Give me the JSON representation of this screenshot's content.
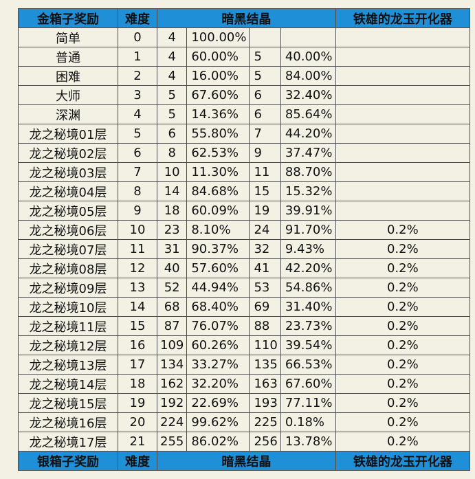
{
  "header": {
    "box": "金箱子奖励",
    "difficulty": "难度",
    "crystal": "暗黑结晶",
    "dragon": "铁雄的龙玉开化器"
  },
  "rows": [
    {
      "name": "简单",
      "diff": "0",
      "n1": "4",
      "p1": "100.00%",
      "n2": "",
      "p2": "",
      "dragon": ""
    },
    {
      "name": "普通",
      "diff": "1",
      "n1": "4",
      "p1": "60.00%",
      "n2": "5",
      "p2": "40.00%",
      "dragon": ""
    },
    {
      "name": "困难",
      "diff": "2",
      "n1": "4",
      "p1": "16.00%",
      "n2": "5",
      "p2": "84.00%",
      "dragon": ""
    },
    {
      "name": "大师",
      "diff": "3",
      "n1": "5",
      "p1": "67.60%",
      "n2": "6",
      "p2": "32.40%",
      "dragon": ""
    },
    {
      "name": "深渊",
      "diff": "4",
      "n1": "5",
      "p1": "14.36%",
      "n2": "6",
      "p2": "85.64%",
      "dragon": ""
    },
    {
      "name": "龙之秘境01层",
      "diff": "5",
      "n1": "6",
      "p1": "55.80%",
      "n2": "7",
      "p2": "44.20%",
      "dragon": ""
    },
    {
      "name": "龙之秘境02层",
      "diff": "6",
      "n1": "8",
      "p1": "62.53%",
      "n2": "9",
      "p2": "37.47%",
      "dragon": ""
    },
    {
      "name": "龙之秘境03层",
      "diff": "7",
      "n1": "10",
      "p1": "11.30%",
      "n2": "11",
      "p2": "88.70%",
      "dragon": ""
    },
    {
      "name": "龙之秘境04层",
      "diff": "8",
      "n1": "14",
      "p1": "84.68%",
      "n2": "15",
      "p2": "15.32%",
      "dragon": ""
    },
    {
      "name": "龙之秘境05层",
      "diff": "9",
      "n1": "18",
      "p1": "60.09%",
      "n2": "19",
      "p2": "39.91%",
      "dragon": ""
    },
    {
      "name": "龙之秘境06层",
      "diff": "10",
      "n1": "23",
      "p1": "8.10%",
      "n2": "24",
      "p2": "91.70%",
      "dragon": "0.2%"
    },
    {
      "name": "龙之秘境07层",
      "diff": "11",
      "n1": "31",
      "p1": "90.37%",
      "n2": "32",
      "p2": "9.43%",
      "dragon": "0.2%"
    },
    {
      "name": "龙之秘境08层",
      "diff": "12",
      "n1": "40",
      "p1": "57.60%",
      "n2": "41",
      "p2": "42.20%",
      "dragon": "0.2%"
    },
    {
      "name": "龙之秘境09层",
      "diff": "13",
      "n1": "52",
      "p1": "44.94%",
      "n2": "53",
      "p2": "54.86%",
      "dragon": "0.2%"
    },
    {
      "name": "龙之秘境10层",
      "diff": "14",
      "n1": "68",
      "p1": "68.40%",
      "n2": "69",
      "p2": "31.40%",
      "dragon": "0.2%"
    },
    {
      "name": "龙之秘境11层",
      "diff": "15",
      "n1": "87",
      "p1": "76.07%",
      "n2": "88",
      "p2": "23.73%",
      "dragon": "0.2%"
    },
    {
      "name": "龙之秘境12层",
      "diff": "16",
      "n1": "109",
      "p1": "60.26%",
      "n2": "110",
      "p2": "39.54%",
      "dragon": "0.2%"
    },
    {
      "name": "龙之秘境13层",
      "diff": "17",
      "n1": "134",
      "p1": "33.27%",
      "n2": "135",
      "p2": "66.53%",
      "dragon": "0.2%"
    },
    {
      "name": "龙之秘境14层",
      "diff": "18",
      "n1": "162",
      "p1": "32.20%",
      "n2": "163",
      "p2": "67.60%",
      "dragon": "0.2%"
    },
    {
      "name": "龙之秘境15层",
      "diff": "19",
      "n1": "192",
      "p1": "22.69%",
      "n2": "193",
      "p2": "77.11%",
      "dragon": "0.2%"
    },
    {
      "name": "龙之秘境16层",
      "diff": "20",
      "n1": "224",
      "p1": "99.62%",
      "n2": "225",
      "p2": "0.18%",
      "dragon": "0.2%"
    },
    {
      "name": "龙之秘境17层",
      "diff": "21",
      "n1": "255",
      "p1": "86.02%",
      "n2": "256",
      "p2": "13.78%",
      "dragon": "0.2%"
    }
  ],
  "footer_header": {
    "box": "银箱子奖励",
    "difficulty": "难度",
    "crystal": "暗黑结晶",
    "dragon": "铁雄的龙玉开化器"
  },
  "colors": {
    "header_bg": "#1f8fd8",
    "body_bg": "#f3f1e4",
    "border": "#4a4a4a"
  }
}
